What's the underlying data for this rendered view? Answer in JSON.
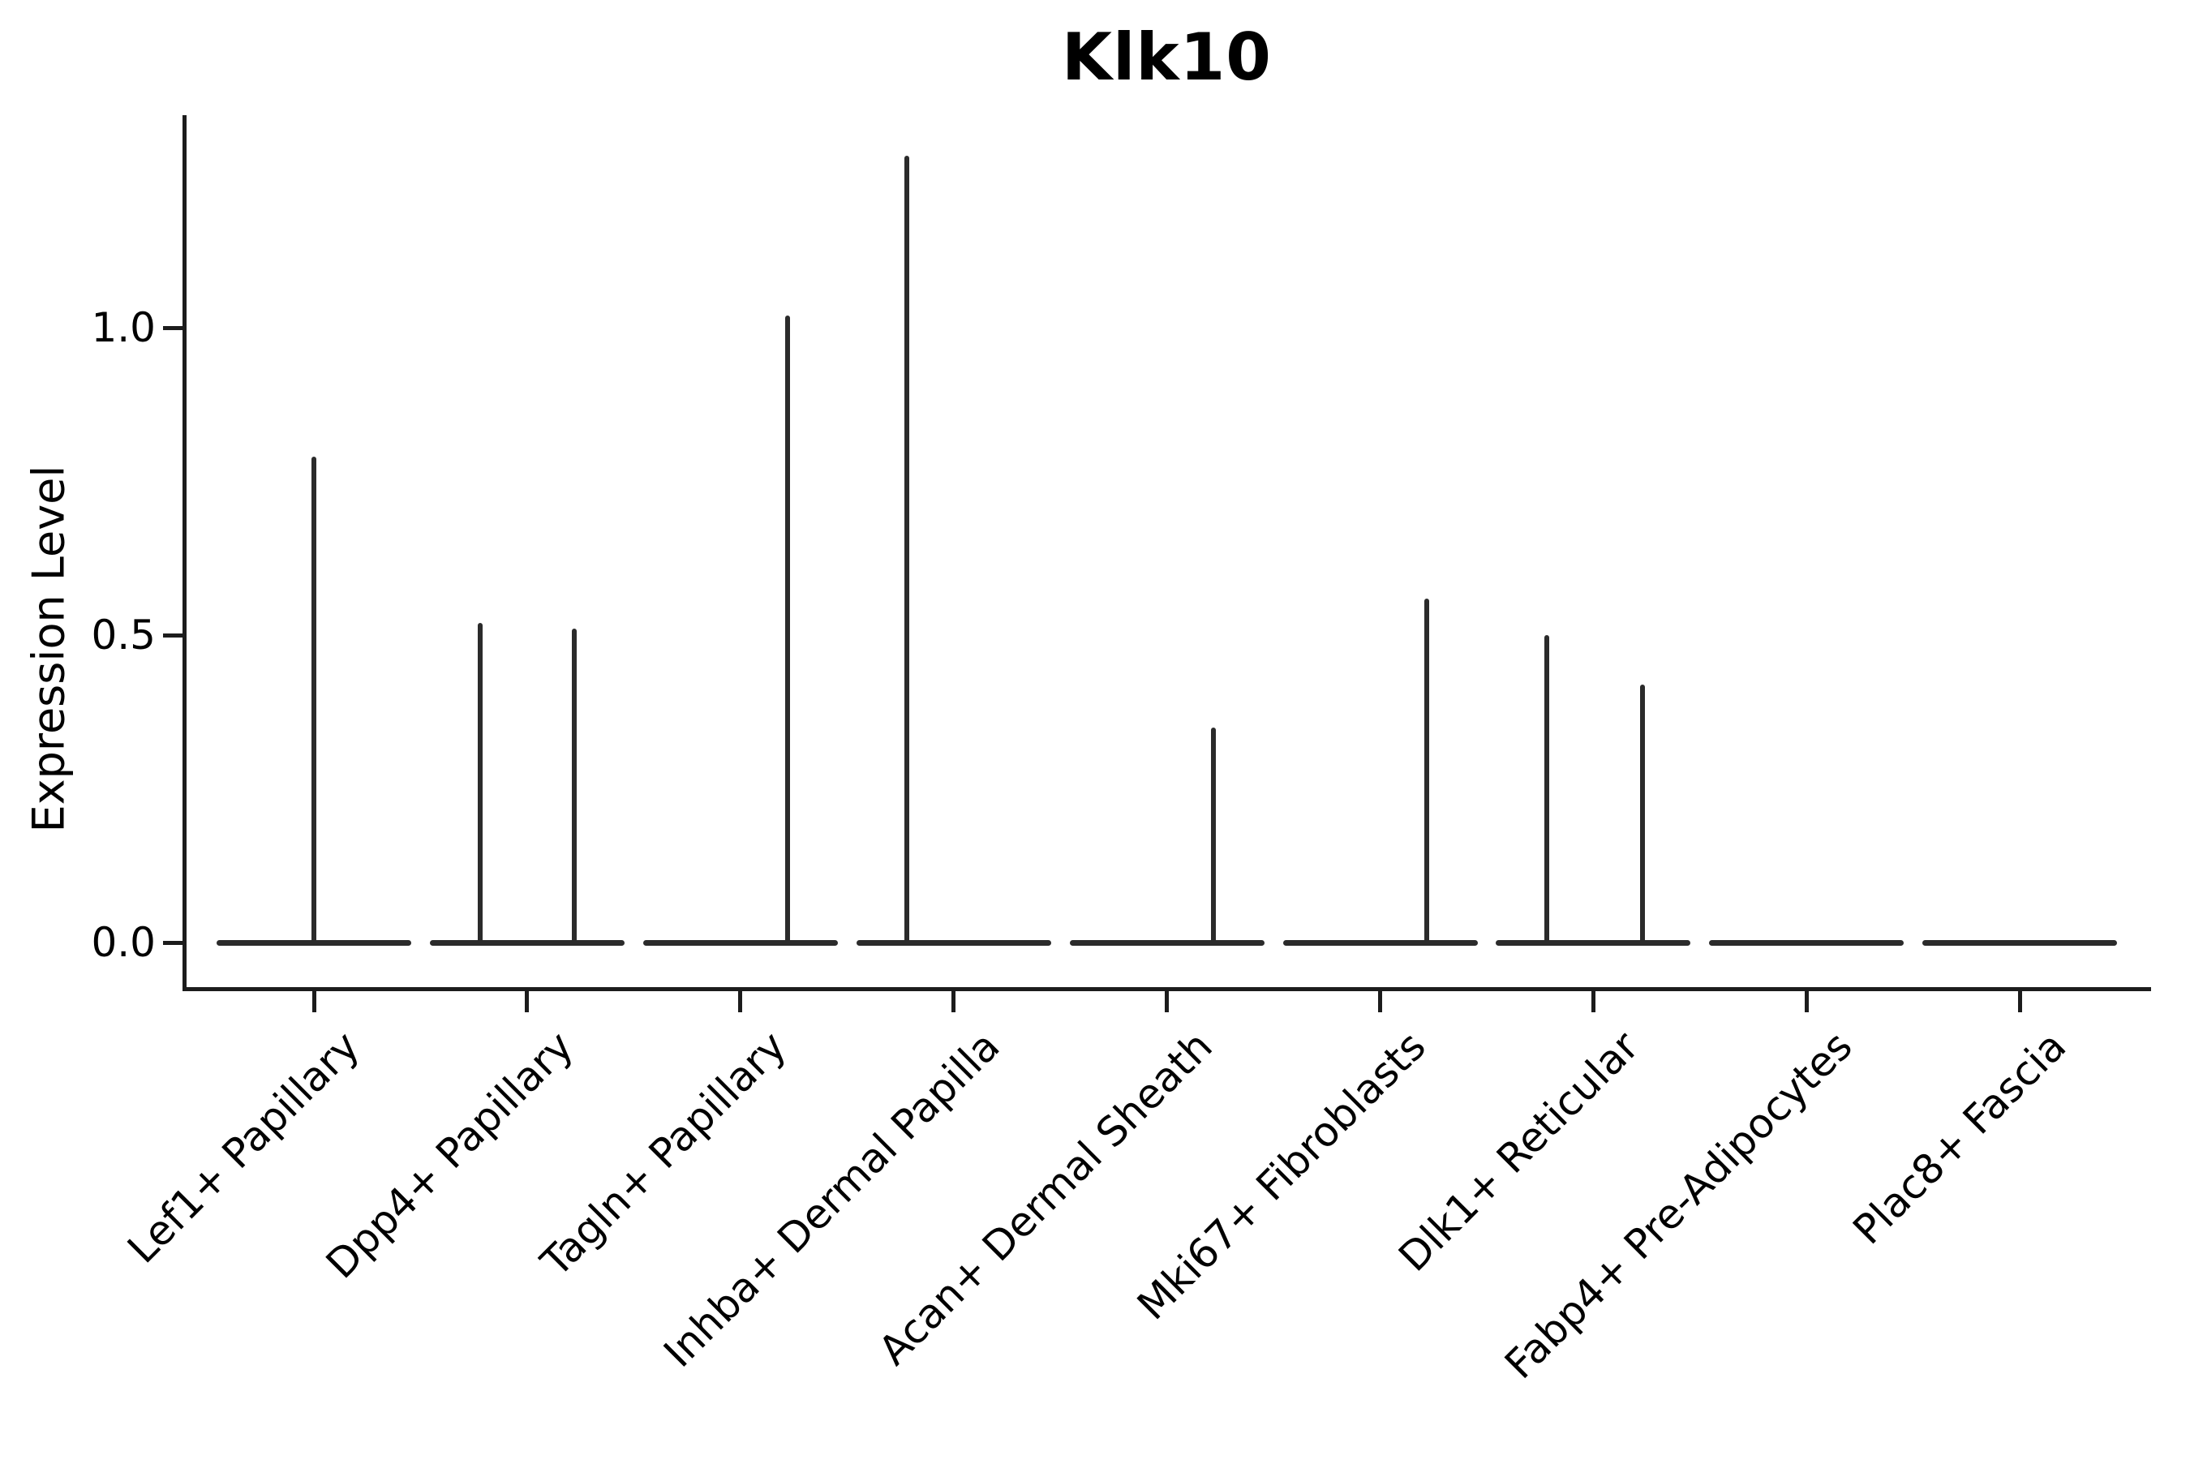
{
  "title": "Klk10",
  "colors": {
    "violin_line": "#2b2b2b",
    "axis_line": "#1c1c1c",
    "text": "#000000",
    "background": "#ffffff"
  },
  "chart_data": {
    "type": "violin",
    "title": "Klk10",
    "xlabel": "",
    "ylabel": "Expression Level",
    "ytick_labels": [
      "0.0",
      "0.5",
      "1.0"
    ],
    "ytick_values": [
      0.0,
      0.5,
      1.0
    ],
    "ylim": [
      -0.07,
      1.34
    ],
    "grid": false,
    "legend": null,
    "x_labels_rotation_deg": 45,
    "categories": [
      "Lef1+ Papillary",
      "Dpp4+ Papillary",
      "Tagln+ Papillary",
      "Inhba+ Dermal Papilla",
      "Acan+ Dermal Sheath",
      "Mki67+ Fibroblasts",
      "Dlk1+ Reticular",
      "Fabp4+ Pre-Adipocytes",
      "Plac8+ Fascia"
    ],
    "violin_description": "Each cell type shows a flat violin collapsed at expression 0 with thin vertical spikes marking rare expressing cells; spike offset is a fraction of the category slot width, peak is the maximum expression level reached.",
    "violins": [
      {
        "category": "Lef1+ Papillary",
        "base_at": 0.0,
        "spikes": [
          {
            "offset": 0.0,
            "peak": 0.79
          }
        ]
      },
      {
        "category": "Dpp4+ Papillary",
        "base_at": 0.0,
        "spikes": [
          {
            "offset": -0.22,
            "peak": 0.52
          },
          {
            "offset": 0.22,
            "peak": 0.51
          }
        ]
      },
      {
        "category": "Tagln+ Papillary",
        "base_at": 0.0,
        "spikes": [
          {
            "offset": 0.22,
            "peak": 1.02
          }
        ]
      },
      {
        "category": "Inhba+ Dermal Papilla",
        "base_at": 0.0,
        "spikes": [
          {
            "offset": -0.22,
            "peak": 1.28
          }
        ]
      },
      {
        "category": "Acan+ Dermal Sheath",
        "base_at": 0.0,
        "spikes": [
          {
            "offset": 0.22,
            "peak": 0.35
          }
        ]
      },
      {
        "category": "Mki67+ Fibroblasts",
        "base_at": 0.0,
        "spikes": [
          {
            "offset": 0.22,
            "peak": 0.56
          }
        ]
      },
      {
        "category": "Dlk1+ Reticular",
        "base_at": 0.0,
        "spikes": [
          {
            "offset": -0.22,
            "peak": 0.5
          },
          {
            "offset": 0.23,
            "peak": 0.42
          }
        ]
      },
      {
        "category": "Fabp4+ Pre-Adipocytes",
        "base_at": 0.0,
        "spikes": []
      },
      {
        "category": "Plac8+ Fascia",
        "base_at": 0.0,
        "spikes": []
      }
    ]
  }
}
